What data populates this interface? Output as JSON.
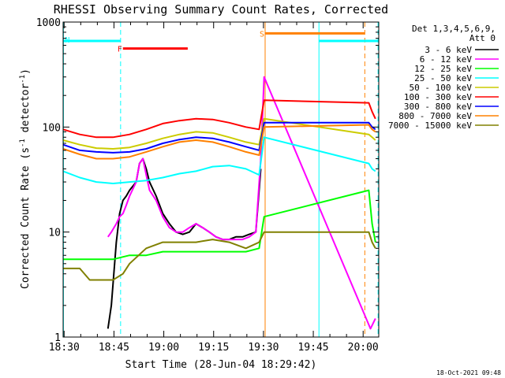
{
  "chart_data": {
    "type": "line",
    "title": "RHESSI Observing Summary Count Rates, Corrected",
    "xlabel": "Start Time (28-Jun-04 18:29:42)",
    "ylabel": "Corrected Count Rate (s⁻¹ detector⁻¹)",
    "yscale": "log",
    "ylim": [
      1,
      1000
    ],
    "xlim_minutes": [
      0,
      95
    ],
    "x_ticks": [
      {
        "t": 0.3,
        "label": "18:30"
      },
      {
        "t": 15.3,
        "label": "18:45"
      },
      {
        "t": 30.3,
        "label": "19:00"
      },
      {
        "t": 45.3,
        "label": "19:15"
      },
      {
        "t": 60.3,
        "label": "19:30"
      },
      {
        "t": 75.3,
        "label": "19:45"
      },
      {
        "t": 90.3,
        "label": "20:00"
      }
    ],
    "y_ticks": [
      {
        "v": 1,
        "label": "1"
      },
      {
        "v": 10,
        "label": "10"
      },
      {
        "v": 100,
        "label": "100"
      },
      {
        "v": 1000,
        "label": "1000"
      }
    ],
    "legend_header": [
      "Det 1,3,4,5,6,9,",
      "Att 0"
    ],
    "legend_position": "right",
    "footer_date": "18-Oct-2021 09:48",
    "series": [
      {
        "name": "3 - 6 keV",
        "color": "#000000",
        "x": [
          13.5,
          14.5,
          16,
          17,
          18,
          19,
          20,
          22,
          23,
          24,
          25,
          26,
          28,
          30,
          32,
          34,
          36,
          38,
          40,
          42,
          44,
          46,
          48,
          50,
          52,
          54,
          56,
          58,
          59.5
        ],
        "y": [
          1.2,
          2,
          8,
          15,
          20,
          22,
          25,
          30,
          45,
          50,
          40,
          30,
          22,
          15,
          12,
          10,
          9.5,
          10,
          12,
          11,
          10,
          9,
          8.5,
          8.5,
          9,
          9,
          9.5,
          10,
          40
        ]
      },
      {
        "name": "6 - 12 keV",
        "color": "#ff00ff",
        "x": [
          13.5,
          14.5,
          16,
          17,
          18,
          19,
          20,
          22,
          23,
          24,
          25,
          26,
          28,
          30,
          32,
          34,
          36,
          38,
          40,
          42,
          44,
          46,
          48,
          50,
          52,
          54,
          56,
          58,
          59.5,
          60.5,
          92.5,
          94
        ],
        "y": [
          9,
          10,
          12,
          14,
          15,
          18,
          22,
          30,
          45,
          50,
          35,
          25,
          20,
          14,
          11,
          10,
          10,
          11,
          12,
          11,
          10,
          9,
          8.5,
          8.5,
          8.5,
          8.5,
          9,
          10,
          50,
          300,
          1.2,
          1.5
        ]
      },
      {
        "name": "12 - 25 keV",
        "color": "#00ff00",
        "x": [
          0,
          5,
          10,
          15,
          20,
          25,
          30,
          35,
          40,
          45,
          50,
          55,
          59,
          60.5,
          92,
          93,
          94
        ],
        "y": [
          5.5,
          5.5,
          5.5,
          5.5,
          6,
          6,
          6.5,
          6.5,
          6.5,
          6.5,
          6.5,
          6.5,
          7,
          14,
          25,
          12,
          8
        ]
      },
      {
        "name": "25 - 50 keV",
        "color": "#00ffff",
        "x": [
          0,
          5,
          10,
          15,
          20,
          25,
          30,
          35,
          40,
          45,
          50,
          55,
          59,
          60.5,
          92,
          93,
          94
        ],
        "y": [
          38,
          33,
          30,
          29,
          30,
          31,
          33,
          36,
          38,
          42,
          43,
          40,
          35,
          80,
          45,
          40,
          38
        ]
      },
      {
        "name": "50 - 100 keV",
        "color": "#cccc00",
        "x": [
          0,
          5,
          10,
          15,
          20,
          25,
          30,
          35,
          40,
          45,
          50,
          55,
          59,
          60.5,
          92,
          93,
          94
        ],
        "y": [
          75,
          68,
          63,
          62,
          64,
          70,
          78,
          85,
          90,
          88,
          80,
          72,
          68,
          120,
          85,
          80,
          75
        ]
      },
      {
        "name": "100 - 300 keV",
        "color": "#ff0000",
        "x": [
          0,
          5,
          10,
          15,
          20,
          25,
          30,
          35,
          40,
          45,
          50,
          55,
          59,
          60.5,
          92,
          93,
          94
        ],
        "y": [
          95,
          85,
          80,
          80,
          85,
          95,
          108,
          115,
          120,
          118,
          110,
          100,
          95,
          180,
          170,
          140,
          120
        ]
      },
      {
        "name": "300 - 800 keV",
        "color": "#0000ff",
        "x": [
          0,
          5,
          10,
          15,
          20,
          25,
          30,
          35,
          40,
          45,
          50,
          55,
          59,
          60.5,
          92,
          93,
          94
        ],
        "y": [
          68,
          60,
          58,
          57,
          58,
          62,
          70,
          76,
          80,
          78,
          72,
          65,
          60,
          110,
          110,
          100,
          95
        ]
      },
      {
        "name": "800 - 7000 keV",
        "color": "#ff8000",
        "x": [
          0,
          5,
          10,
          15,
          20,
          25,
          30,
          35,
          40,
          45,
          50,
          55,
          59,
          60.5,
          92,
          93,
          94
        ],
        "y": [
          62,
          55,
          50,
          50,
          52,
          58,
          65,
          72,
          75,
          72,
          65,
          58,
          54,
          100,
          105,
          95,
          90
        ]
      },
      {
        "name": "7000 - 15000 keV",
        "color": "#808000",
        "x": [
          0,
          5,
          8,
          10,
          15,
          18,
          20,
          25,
          30,
          35,
          40,
          45,
          50,
          55,
          59,
          60.5,
          92,
          93,
          94
        ],
        "y": [
          4.5,
          4.5,
          3.5,
          3.5,
          3.5,
          4,
          5,
          7,
          8,
          8,
          8,
          8.5,
          8,
          7,
          8,
          10,
          10,
          8,
          7
        ]
      }
    ],
    "vertical_markers": [
      {
        "t": 0.1,
        "color": "#00ffff",
        "style": "solid"
      },
      {
        "t": 17.3,
        "color": "#00ffff",
        "style": "dashed"
      },
      {
        "t": 60.8,
        "color": "#ff8000",
        "style": "solid"
      },
      {
        "t": 77.0,
        "color": "#00ffff",
        "style": "solid"
      },
      {
        "t": 90.8,
        "color": "#ff8000",
        "style": "dashed"
      },
      {
        "t": 94.8,
        "color": "#00ffff",
        "style": "dashed"
      }
    ],
    "flag_bars": [
      {
        "label": "N",
        "color": "#00ffff",
        "t_start": 0.1,
        "t_end": 17.3,
        "level": 660
      },
      {
        "label": "F",
        "color": "#ff0000",
        "t_start": 18.0,
        "t_end": 37.5,
        "level": 560
      },
      {
        "label": "S",
        "color": "#ff8000",
        "t_start": 60.8,
        "t_end": 90.8,
        "level": 780
      },
      {
        "label": "",
        "color": "#00ffff",
        "t_start": 77.0,
        "t_end": 94.8,
        "level": 660
      }
    ]
  }
}
